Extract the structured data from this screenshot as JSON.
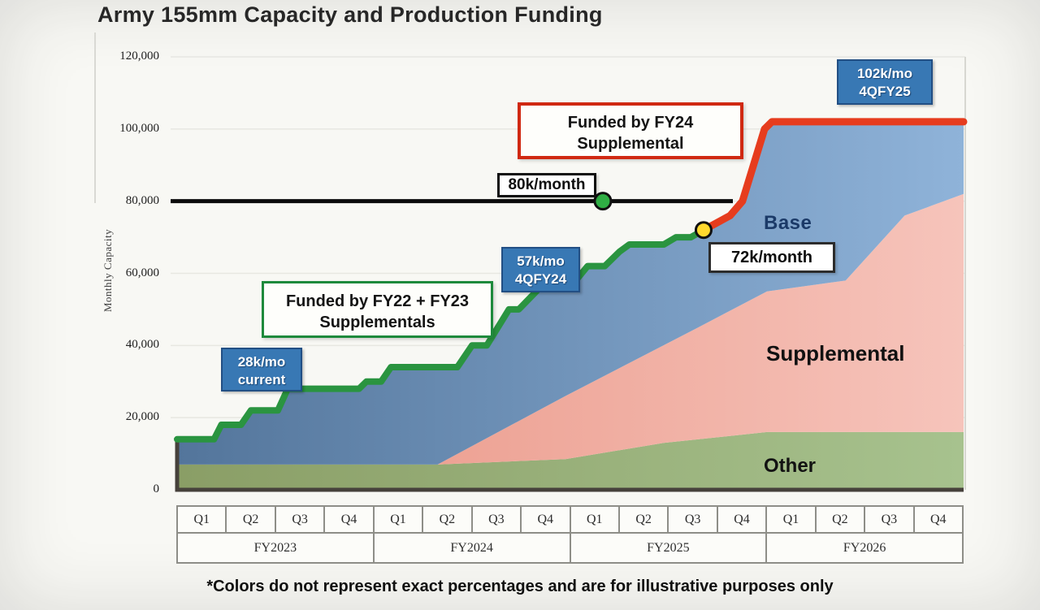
{
  "title": "Army 155mm Capacity and Production Funding",
  "footnote": "*Colors do not represent exact percentages and are for illustrative purposes only",
  "y_axis": {
    "label": "Monthly Capacity",
    "ticks": [
      {
        "label": "120,000",
        "value": 120000
      },
      {
        "label": "100,000",
        "value": 100000
      },
      {
        "label": "80,000",
        "value": 80000
      },
      {
        "label": "60,000",
        "value": 60000
      },
      {
        "label": "40,000",
        "value": 40000
      },
      {
        "label": "20,000",
        "value": 20000
      },
      {
        "label": "0",
        "value": 0
      }
    ]
  },
  "x_axis": {
    "fiscal_years": [
      {
        "label": "FY2023",
        "quarters": [
          "Q1",
          "Q2",
          "Q3",
          "Q4"
        ]
      },
      {
        "label": "FY2024",
        "quarters": [
          "Q1",
          "Q2",
          "Q3",
          "Q4"
        ]
      },
      {
        "label": "FY2025",
        "quarters": [
          "Q1",
          "Q2",
          "Q3",
          "Q4"
        ]
      },
      {
        "label": "FY2026",
        "quarters": [
          "Q1",
          "Q2",
          "Q3",
          "Q4"
        ]
      }
    ]
  },
  "annotations": {
    "current_rate": {
      "line1": "28k/mo",
      "line2": "current"
    },
    "rate_4qfy24": {
      "line1": "57k/mo",
      "line2": "4QFY24"
    },
    "rate_4qfy25": {
      "line1": "102k/mo",
      "line2": "4QFY25"
    },
    "funded_fy22_fy23": {
      "line1": "Funded by FY22 + FY23",
      "line2": "Supplementals"
    },
    "funded_fy24": {
      "line1": "Funded by FY24",
      "line2": "Supplemental"
    },
    "ref_80k": "80k/month",
    "ref_72k": "72k/month",
    "area_base": "Base",
    "area_supplemental": "Supplemental",
    "area_other": "Other"
  },
  "colors": {
    "base_area_left": "#53759b",
    "base_area_right": "#8fb3d9",
    "supplemental_left": "#eda294",
    "supplemental_right": "#f6c4bb",
    "other_left": "#8a9e66",
    "other_right": "#a7c28e",
    "green_line": "#2a9440",
    "red_line": "#e63c1e",
    "reference_line": "#0b0b0b",
    "green_dot": "#2fae44",
    "yellow_dot": "#ffd92e",
    "callout_blue_bg": "#3878b4",
    "callout_blue_border": "#224f84",
    "funded_green_border": "#1e8a3c",
    "funded_red_border": "#d02912",
    "gridline": "#dcdcd6",
    "axis_edge": "#46413b"
  },
  "chart_data": {
    "type": "area",
    "title": "Army 155mm Capacity and Production Funding",
    "xlabel": "",
    "ylabel": "Monthly Capacity",
    "x_unit": "quarter index (0 = start of Q1 FY2023, 16 = end of Q4 FY2026)",
    "y_unit": "155mm rounds per month",
    "ylim": [
      0,
      120000
    ],
    "areas": [
      {
        "name": "Other",
        "top_edge": [
          [
            0,
            7000
          ],
          [
            5.3,
            7000
          ],
          [
            7.9,
            8500
          ],
          [
            9.9,
            13000
          ],
          [
            12,
            16000
          ],
          [
            16,
            16000
          ]
        ]
      },
      {
        "name": "Supplemental",
        "top_edge": [
          [
            5.3,
            7000
          ],
          [
            7.9,
            26000
          ],
          [
            10.6,
            45000
          ],
          [
            12,
            55000
          ],
          [
            13.6,
            58000
          ],
          [
            14.8,
            76000
          ],
          [
            16,
            82000
          ]
        ]
      },
      {
        "name": "Base",
        "note": "top edge follows the capacity line up to 102k/mo"
      }
    ],
    "capacity_line": {
      "green": {
        "funding": "FY22 + FY23 Supplementals",
        "points": [
          [
            0,
            14000
          ],
          [
            0.75,
            14000
          ],
          [
            0.9,
            18000
          ],
          [
            1.3,
            18000
          ],
          [
            1.5,
            22000
          ],
          [
            2.05,
            22000
          ],
          [
            2.25,
            28000
          ],
          [
            3.7,
            28000
          ],
          [
            3.85,
            30000
          ],
          [
            4.15,
            30000
          ],
          [
            4.35,
            34000
          ],
          [
            5.7,
            34000
          ],
          [
            6.0,
            40000
          ],
          [
            6.3,
            40000
          ],
          [
            6.75,
            50000
          ],
          [
            6.95,
            50000
          ],
          [
            7.45,
            57000
          ],
          [
            8.05,
            57000
          ],
          [
            8.35,
            62000
          ],
          [
            8.7,
            62000
          ],
          [
            9.0,
            66000
          ],
          [
            9.2,
            68000
          ],
          [
            9.9,
            68000
          ],
          [
            10.15,
            70000
          ],
          [
            10.45,
            70000
          ],
          [
            10.71,
            72000
          ]
        ]
      },
      "red": {
        "funding": "FY24 Supplemental",
        "points": [
          [
            10.71,
            72000
          ],
          [
            11.25,
            76000
          ],
          [
            11.5,
            80000
          ],
          [
            11.95,
            100000
          ],
          [
            12.1,
            102000
          ],
          [
            16,
            102000
          ]
        ]
      }
    },
    "reference_line": {
      "label": "80k/month",
      "value": 80000
    },
    "markers": [
      {
        "name": "green-dot",
        "x": 8.66,
        "value": 80000
      },
      {
        "name": "yellow-dot",
        "x": 10.71,
        "value": 72000
      }
    ],
    "key_rates": [
      {
        "label": "28k/mo current",
        "value": 28000
      },
      {
        "label": "57k/mo 4QFY24",
        "value": 57000
      },
      {
        "label": "72k/month",
        "value": 72000
      },
      {
        "label": "80k/month reference",
        "value": 80000
      },
      {
        "label": "102k/mo 4QFY25",
        "value": 102000
      }
    ]
  }
}
